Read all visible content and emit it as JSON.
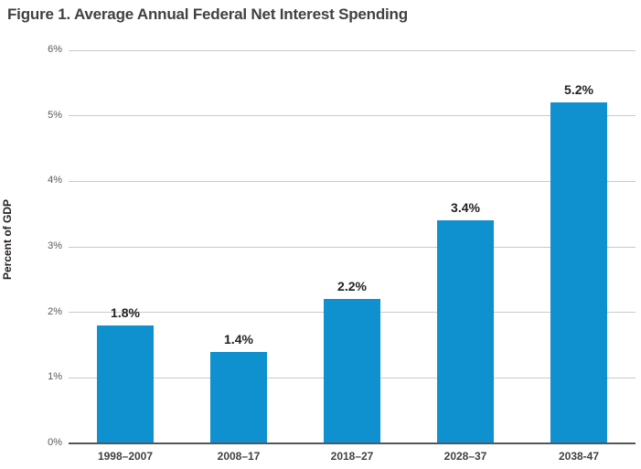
{
  "figure": {
    "title": "Figure 1. Average Annual Federal Net Interest Spending",
    "ylabel": "Percent of GDP"
  },
  "chart_data": {
    "type": "bar",
    "title": "Figure 1. Average Annual Federal Net Interest Spending",
    "xlabel": "",
    "ylabel": "Percent of GDP",
    "categories": [
      "1998–2007",
      "2008–17",
      "2018–27",
      "2028–37",
      "2038-47"
    ],
    "values": [
      1.8,
      1.4,
      2.2,
      3.4,
      5.2
    ],
    "value_labels": [
      "1.8%",
      "1.4%",
      "2.2%",
      "3.4%",
      "5.2%"
    ],
    "ylim": [
      0,
      6
    ],
    "ytick_labels": [
      "0%",
      "1%",
      "2%",
      "3%",
      "4%",
      "5%",
      "6%"
    ],
    "grid": "horizontal",
    "legend": "none"
  },
  "colors": {
    "bar": "#0f90cf",
    "title_text": "#414042",
    "tick_text": "#58595b",
    "gridline": "#c9c9c9",
    "baseline": "#55565a",
    "value_label": "#231f20",
    "category_text": "#414042",
    "background": "#ffffff"
  }
}
